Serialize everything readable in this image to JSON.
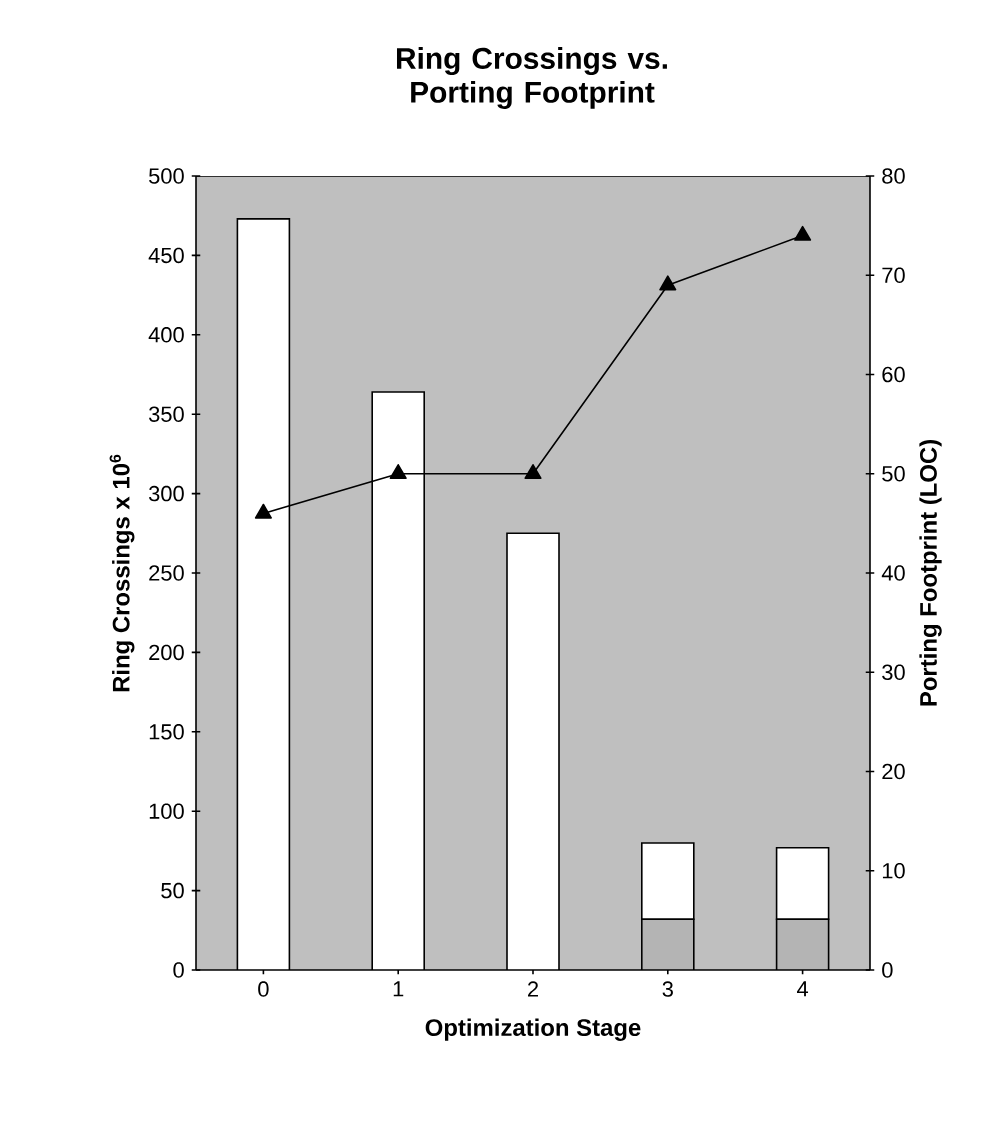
{
  "chart_data": {
    "type": "bar",
    "title": "Ring Crossings vs. Porting Footprint",
    "xlabel": "Optimization Stage",
    "ylabel": "Ring Crossings x 10$^{6}$",
    "y2label": "Porting Footprint (LOC)",
    "categories": [
      "0",
      "1",
      "2",
      "3",
      "4"
    ],
    "stacked": true,
    "series": [
      {
        "color": "#b4b4b4",
        "values": [
          0,
          0,
          0,
          32,
          32
        ]
      },
      {
        "color": "#ffffff",
        "values": [
          473,
          364,
          275,
          48,
          45
        ]
      },
      {
        "type": "line",
        "axis": "y2",
        "color": "#000000",
        "marker": "triangle",
        "values": [
          46,
          50,
          50,
          69,
          74
        ]
      }
    ],
    "ylim": [
      0,
      500
    ],
    "yticks": [
      0,
      50,
      100,
      150,
      200,
      250,
      300,
      350,
      400,
      450,
      500
    ],
    "y2lim": [
      0,
      80
    ],
    "y2ticks": [
      0,
      10,
      20,
      30,
      40,
      50,
      60,
      70,
      80
    ],
    "legend": false,
    "grid": false
  }
}
